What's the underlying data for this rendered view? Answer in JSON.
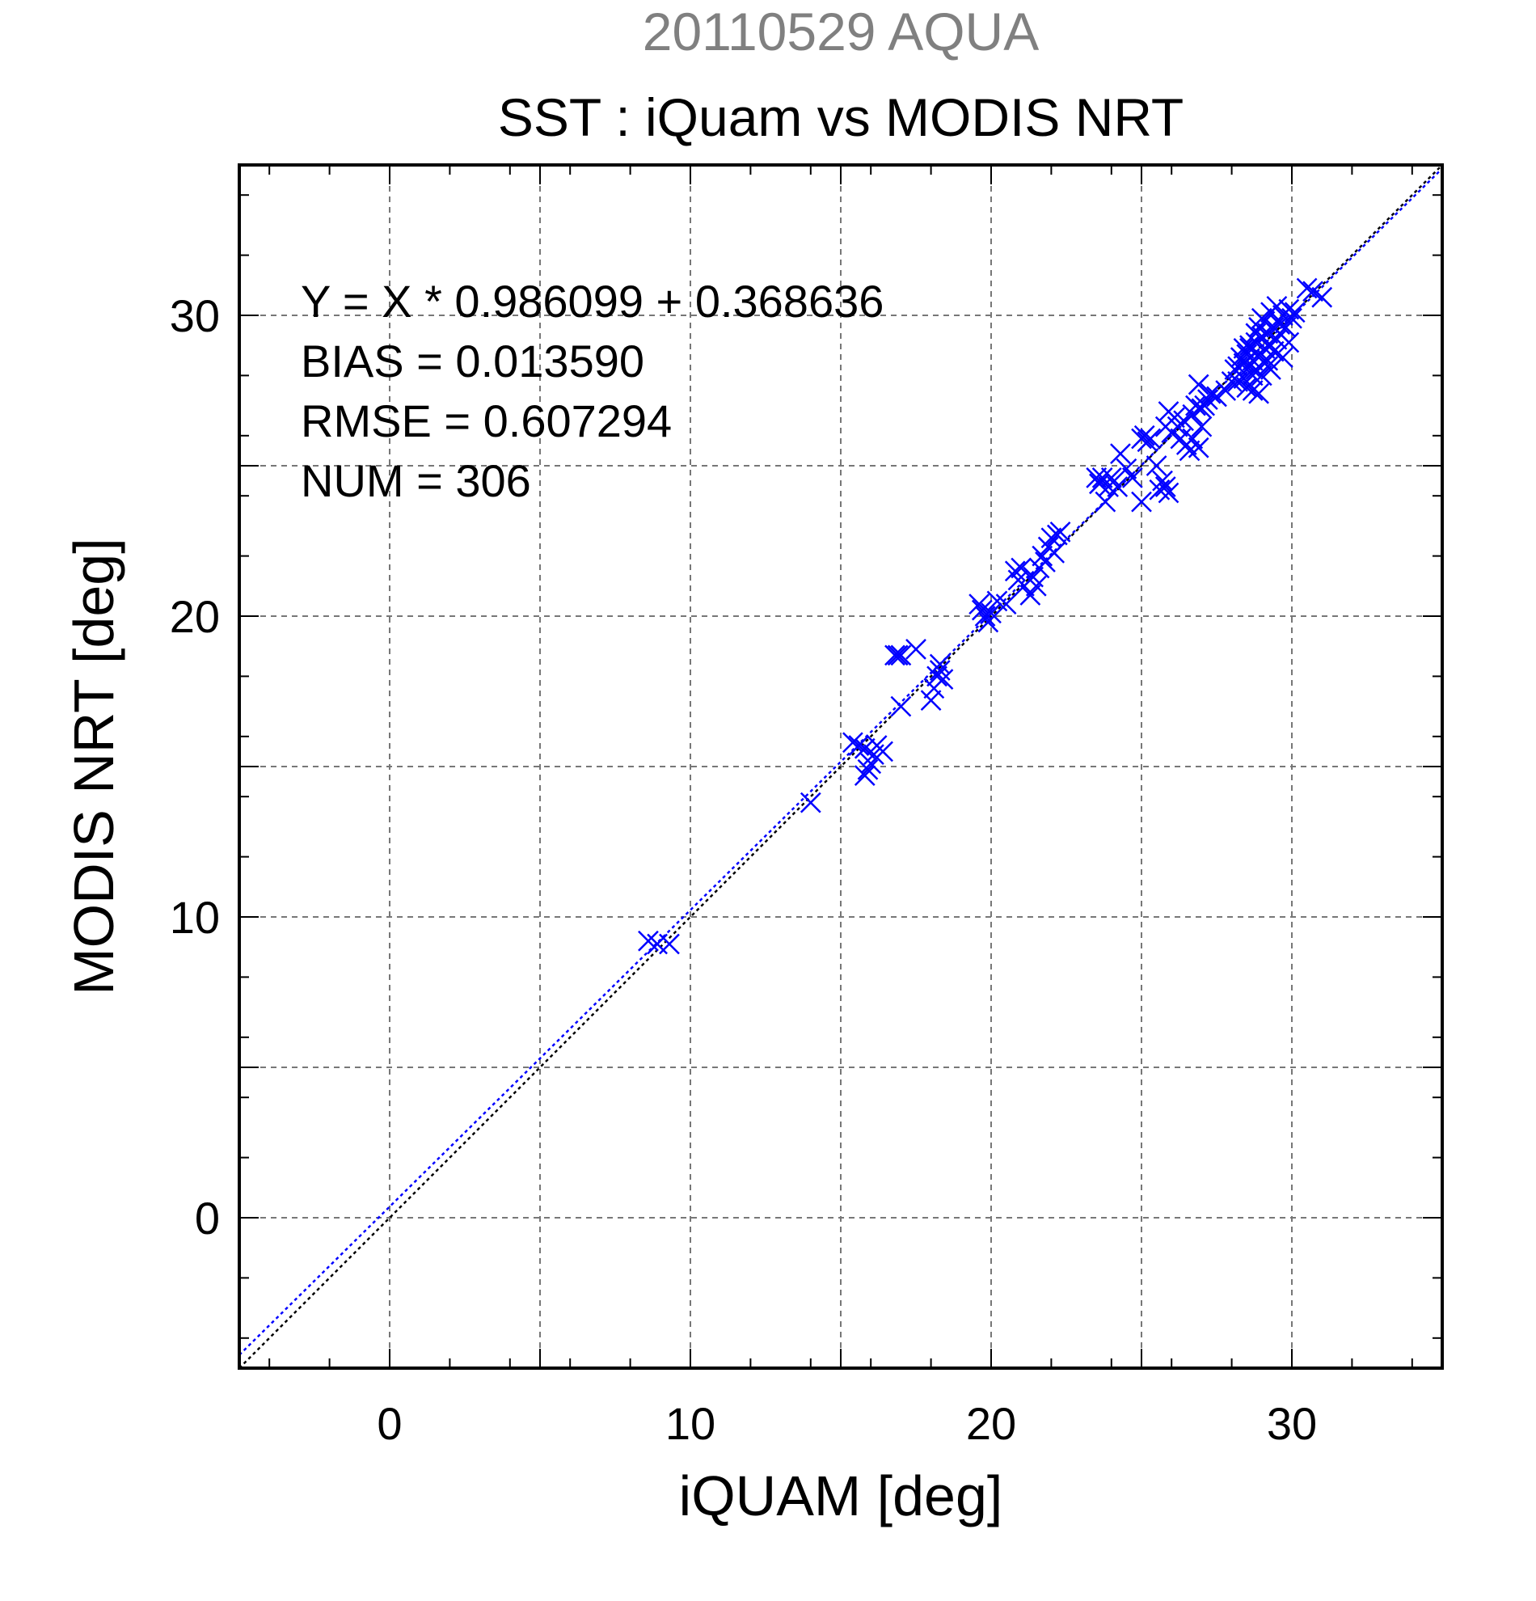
{
  "chart_data": {
    "type": "scatter",
    "date_title": "20110529 AQUA",
    "title": "SST : iQuam vs MODIS NRT",
    "xlabel": "iQUAM [deg]",
    "ylabel": "MODIS NRT [deg]",
    "xlim": [
      -5,
      35
    ],
    "ylim": [
      -5,
      35
    ],
    "xticks": [
      0,
      10,
      20,
      30
    ],
    "yticks": [
      0,
      10,
      20,
      30
    ],
    "grid": true,
    "marker": "x",
    "colors": {
      "points": "#0000ff",
      "fit_line": "#0000ff",
      "identity_line": "#000000",
      "date_title": "#808080"
    },
    "stats": {
      "equation": "Y = X * 0.986099 + 0.368636",
      "bias": "BIAS = 0.013590",
      "rmse": "RMSE = 0.607294",
      "num": "NUM = 306"
    },
    "fit": {
      "slope": 0.986099,
      "intercept": 0.368636
    },
    "series": [
      {
        "points": [
          [
            8.6,
            9.2
          ],
          [
            8.9,
            9.1
          ],
          [
            9.3,
            9.1
          ],
          [
            14.0,
            13.8
          ],
          [
            15.4,
            15.8
          ],
          [
            15.6,
            15.7
          ],
          [
            15.8,
            15.6
          ],
          [
            15.9,
            14.9
          ],
          [
            16.0,
            15.1
          ],
          [
            16.1,
            15.4
          ],
          [
            16.2,
            15.7
          ],
          [
            16.4,
            15.5
          ],
          [
            15.8,
            14.7
          ],
          [
            16.8,
            18.7
          ],
          [
            16.9,
            18.7
          ],
          [
            17.0,
            18.7
          ],
          [
            17.0,
            17.0
          ],
          [
            17.5,
            18.9
          ],
          [
            18.0,
            17.2
          ],
          [
            18.1,
            17.6
          ],
          [
            18.2,
            18.0
          ],
          [
            18.3,
            18.2
          ],
          [
            18.4,
            17.9
          ],
          [
            18.3,
            18.4
          ],
          [
            19.6,
            20.4
          ],
          [
            19.7,
            20.2
          ],
          [
            19.8,
            20.0
          ],
          [
            19.9,
            19.8
          ],
          [
            20.0,
            20.1
          ],
          [
            20.2,
            20.5
          ],
          [
            20.5,
            20.4
          ],
          [
            20.8,
            21.5
          ],
          [
            20.9,
            21.2
          ],
          [
            21.0,
            21.6
          ],
          [
            21.1,
            21.0
          ],
          [
            21.3,
            20.7
          ],
          [
            21.4,
            21.3
          ],
          [
            21.5,
            21.0
          ],
          [
            21.6,
            21.6
          ],
          [
            21.7,
            22.0
          ],
          [
            21.8,
            21.8
          ],
          [
            21.9,
            22.3
          ],
          [
            22.0,
            22.6
          ],
          [
            22.1,
            22.1
          ],
          [
            22.2,
            22.7
          ],
          [
            22.3,
            22.8
          ],
          [
            23.5,
            24.6
          ],
          [
            23.6,
            24.4
          ],
          [
            23.7,
            24.6
          ],
          [
            23.8,
            23.8
          ],
          [
            23.9,
            24.3
          ],
          [
            24.0,
            24.6
          ],
          [
            24.2,
            24.3
          ],
          [
            24.3,
            25.4
          ],
          [
            24.5,
            24.9
          ],
          [
            24.7,
            24.6
          ],
          [
            25.0,
            25.9
          ],
          [
            25.0,
            23.8
          ],
          [
            25.1,
            26.0
          ],
          [
            25.2,
            25.8
          ],
          [
            25.3,
            25.9
          ],
          [
            25.5,
            25.0
          ],
          [
            25.6,
            24.2
          ],
          [
            25.7,
            24.5
          ],
          [
            25.8,
            24.3
          ],
          [
            25.9,
            24.1
          ],
          [
            25.8,
            26.3
          ],
          [
            25.9,
            26.8
          ],
          [
            26.0,
            26.1
          ],
          [
            26.1,
            26.6
          ],
          [
            26.2,
            26.3
          ],
          [
            26.3,
            25.9
          ],
          [
            26.4,
            26.5
          ],
          [
            26.5,
            25.7
          ],
          [
            26.6,
            25.5
          ],
          [
            26.7,
            25.9
          ],
          [
            26.7,
            26.7
          ],
          [
            26.8,
            27.0
          ],
          [
            26.9,
            25.6
          ],
          [
            27.0,
            26.9
          ],
          [
            27.0,
            26.3
          ],
          [
            27.1,
            27.0
          ],
          [
            27.2,
            27.2
          ],
          [
            27.3,
            27.4
          ],
          [
            27.5,
            27.3
          ],
          [
            26.9,
            27.7
          ],
          [
            27.8,
            27.5
          ],
          [
            28.0,
            27.8
          ],
          [
            28.1,
            28.2
          ],
          [
            28.2,
            28.3
          ],
          [
            28.3,
            28.6
          ],
          [
            28.4,
            28.4
          ],
          [
            28.5,
            28.7
          ],
          [
            28.6,
            28.3
          ],
          [
            28.6,
            29.0
          ],
          [
            28.7,
            28.5
          ],
          [
            28.8,
            29.1
          ],
          [
            28.8,
            28.2
          ],
          [
            28.9,
            28.7
          ],
          [
            29.0,
            29.3
          ],
          [
            29.0,
            28.0
          ],
          [
            29.1,
            28.9
          ],
          [
            29.2,
            29.4
          ],
          [
            29.2,
            28.5
          ],
          [
            29.3,
            29.0
          ],
          [
            29.4,
            29.6
          ],
          [
            29.4,
            28.8
          ],
          [
            29.5,
            29.2
          ],
          [
            29.6,
            29.7
          ],
          [
            29.6,
            29.4
          ],
          [
            29.7,
            30.0
          ],
          [
            29.8,
            29.6
          ],
          [
            29.9,
            30.2
          ],
          [
            30.0,
            29.9
          ],
          [
            30.1,
            30.1
          ],
          [
            29.7,
            28.6
          ],
          [
            28.4,
            27.9
          ],
          [
            28.5,
            27.6
          ],
          [
            28.7,
            27.5
          ],
          [
            28.9,
            27.4
          ],
          [
            28.2,
            27.8
          ],
          [
            29.3,
            28.2
          ],
          [
            28.6,
            28.9
          ],
          [
            28.9,
            29.6
          ],
          [
            29.1,
            29.8
          ],
          [
            29.3,
            30.1
          ],
          [
            30.5,
            30.9
          ],
          [
            30.7,
            30.8
          ],
          [
            31.0,
            30.6
          ],
          [
            29.9,
            29.1
          ],
          [
            28.8,
            29.4
          ],
          [
            29.0,
            29.9
          ],
          [
            28.4,
            28.9
          ],
          [
            29.5,
            30.3
          ],
          [
            28.7,
            28.0
          ],
          [
            29.2,
            28.3
          ]
        ]
      }
    ]
  }
}
